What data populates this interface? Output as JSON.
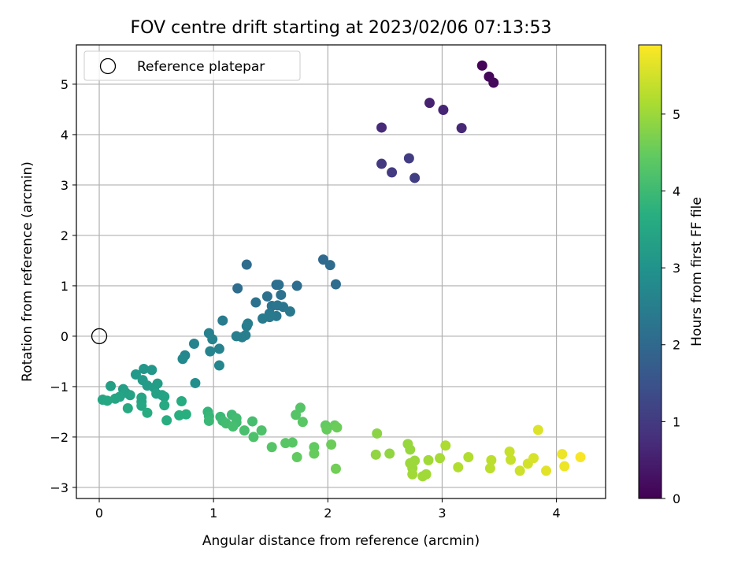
{
  "chart_data": {
    "type": "scatter",
    "title": "FOV centre drift starting at 2023/02/06 07:13:53",
    "xlabel": "Angular distance from reference (arcmin)",
    "ylabel": "Rotation from reference (arcmin)",
    "xlim": [
      -0.2,
      4.43
    ],
    "ylim": [
      -3.22,
      5.78
    ],
    "xticks": [
      0,
      1,
      2,
      3,
      4
    ],
    "yticks": [
      -3,
      -2,
      -1,
      0,
      1,
      2,
      3,
      4,
      5
    ],
    "grid": true,
    "legend": {
      "placement": "upper-left",
      "entries": [
        "Reference platepar"
      ]
    },
    "reference_point": {
      "x": 0,
      "y": 0
    },
    "colorbar": {
      "label": "Hours from first FF file",
      "colormap": "viridis",
      "range": [
        0,
        5.9
      ],
      "ticks": [
        0,
        1,
        2,
        3,
        4,
        5
      ]
    },
    "points": [
      {
        "x": 3.35,
        "y": 5.37,
        "c": 0.05
      },
      {
        "x": 3.41,
        "y": 5.15,
        "c": 0.1
      },
      {
        "x": 3.45,
        "y": 5.03,
        "c": 0.15
      },
      {
        "x": 2.47,
        "y": 4.14,
        "c": 0.7
      },
      {
        "x": 2.89,
        "y": 4.63,
        "c": 0.55
      },
      {
        "x": 3.01,
        "y": 4.49,
        "c": 0.6
      },
      {
        "x": 3.17,
        "y": 4.13,
        "c": 0.65
      },
      {
        "x": 2.47,
        "y": 3.42,
        "c": 0.95
      },
      {
        "x": 2.56,
        "y": 3.25,
        "c": 1.0
      },
      {
        "x": 2.71,
        "y": 3.53,
        "c": 1.05
      },
      {
        "x": 2.76,
        "y": 3.14,
        "c": 1.1
      },
      {
        "x": 1.29,
        "y": 1.42,
        "c": 2.05
      },
      {
        "x": 1.96,
        "y": 1.52,
        "c": 2.0
      },
      {
        "x": 2.02,
        "y": 1.41,
        "c": 2.05
      },
      {
        "x": 2.07,
        "y": 1.03,
        "c": 2.1
      },
      {
        "x": 1.21,
        "y": 0.95,
        "c": 2.1
      },
      {
        "x": 1.55,
        "y": 1.02,
        "c": 2.1
      },
      {
        "x": 1.57,
        "y": 1.02,
        "c": 2.15
      },
      {
        "x": 1.73,
        "y": 1.0,
        "c": 2.1
      },
      {
        "x": 1.37,
        "y": 0.67,
        "c": 2.2
      },
      {
        "x": 1.47,
        "y": 0.79,
        "c": 2.2
      },
      {
        "x": 1.59,
        "y": 0.82,
        "c": 2.2
      },
      {
        "x": 1.51,
        "y": 0.6,
        "c": 2.25
      },
      {
        "x": 1.56,
        "y": 0.61,
        "c": 2.3
      },
      {
        "x": 1.61,
        "y": 0.58,
        "c": 2.3
      },
      {
        "x": 1.49,
        "y": 0.45,
        "c": 2.35
      },
      {
        "x": 1.55,
        "y": 0.4,
        "c": 2.35
      },
      {
        "x": 1.43,
        "y": 0.35,
        "c": 2.4
      },
      {
        "x": 1.49,
        "y": 0.38,
        "c": 2.4
      },
      {
        "x": 1.67,
        "y": 0.49,
        "c": 2.35
      },
      {
        "x": 1.29,
        "y": 0.2,
        "c": 2.45
      },
      {
        "x": 1.3,
        "y": 0.25,
        "c": 2.5
      },
      {
        "x": 1.2,
        "y": 0.0,
        "c": 2.5
      },
      {
        "x": 1.25,
        "y": -0.02,
        "c": 2.5
      },
      {
        "x": 1.28,
        "y": 0.02,
        "c": 2.5
      },
      {
        "x": 1.08,
        "y": 0.31,
        "c": 2.45
      },
      {
        "x": 0.96,
        "y": 0.06,
        "c": 2.55
      },
      {
        "x": 0.99,
        "y": -0.06,
        "c": 2.6
      },
      {
        "x": 0.97,
        "y": -0.3,
        "c": 2.65
      },
      {
        "x": 1.05,
        "y": -0.25,
        "c": 2.6
      },
      {
        "x": 1.05,
        "y": -0.58,
        "c": 2.7
      },
      {
        "x": 0.83,
        "y": -0.15,
        "c": 2.65
      },
      {
        "x": 0.75,
        "y": -0.38,
        "c": 2.7
      },
      {
        "x": 0.73,
        "y": -0.45,
        "c": 2.75
      },
      {
        "x": 0.84,
        "y": -0.93,
        "c": 2.9
      },
      {
        "x": 0.39,
        "y": -0.65,
        "c": 3.1
      },
      {
        "x": 0.46,
        "y": -0.67,
        "c": 3.1
      },
      {
        "x": 0.32,
        "y": -0.76,
        "c": 3.15
      },
      {
        "x": 0.38,
        "y": -0.87,
        "c": 3.2
      },
      {
        "x": 0.42,
        "y": -0.98,
        "c": 3.2
      },
      {
        "x": 0.48,
        "y": -1.02,
        "c": 3.25
      },
      {
        "x": 0.51,
        "y": -0.94,
        "c": 3.25
      },
      {
        "x": 0.1,
        "y": -0.99,
        "c": 3.3
      },
      {
        "x": 0.21,
        "y": -1.05,
        "c": 3.3
      },
      {
        "x": 0.23,
        "y": -1.12,
        "c": 3.35
      },
      {
        "x": 0.27,
        "y": -1.17,
        "c": 3.35
      },
      {
        "x": 0.18,
        "y": -1.2,
        "c": 3.4
      },
      {
        "x": 0.14,
        "y": -1.24,
        "c": 3.45
      },
      {
        "x": 0.03,
        "y": -1.26,
        "c": 3.45
      },
      {
        "x": 0.07,
        "y": -1.28,
        "c": 3.5
      },
      {
        "x": 0.5,
        "y": -1.14,
        "c": 3.35
      },
      {
        "x": 0.55,
        "y": -1.17,
        "c": 3.35
      },
      {
        "x": 0.57,
        "y": -1.2,
        "c": 3.4
      },
      {
        "x": 0.37,
        "y": -1.22,
        "c": 3.45
      },
      {
        "x": 0.37,
        "y": -1.3,
        "c": 3.45
      },
      {
        "x": 0.37,
        "y": -1.38,
        "c": 3.5
      },
      {
        "x": 0.25,
        "y": -1.43,
        "c": 3.55
      },
      {
        "x": 0.57,
        "y": -1.37,
        "c": 3.55
      },
      {
        "x": 0.42,
        "y": -1.52,
        "c": 3.6
      },
      {
        "x": 0.59,
        "y": -1.67,
        "c": 3.65
      },
      {
        "x": 0.72,
        "y": -1.29,
        "c": 3.6
      },
      {
        "x": 0.7,
        "y": -1.57,
        "c": 3.7
      },
      {
        "x": 0.76,
        "y": -1.55,
        "c": 3.7
      },
      {
        "x": 0.95,
        "y": -1.5,
        "c": 3.85
      },
      {
        "x": 0.96,
        "y": -1.59,
        "c": 3.9
      },
      {
        "x": 0.96,
        "y": -1.68,
        "c": 3.95
      },
      {
        "x": 1.06,
        "y": -1.6,
        "c": 3.95
      },
      {
        "x": 1.08,
        "y": -1.68,
        "c": 4.0
      },
      {
        "x": 1.11,
        "y": -1.73,
        "c": 4.05
      },
      {
        "x": 1.16,
        "y": -1.56,
        "c": 4.0
      },
      {
        "x": 1.2,
        "y": -1.63,
        "c": 4.05
      },
      {
        "x": 1.2,
        "y": -1.71,
        "c": 4.05
      },
      {
        "x": 1.17,
        "y": -1.79,
        "c": 4.1
      },
      {
        "x": 1.27,
        "y": -1.87,
        "c": 4.15
      },
      {
        "x": 1.34,
        "y": -1.69,
        "c": 4.1
      },
      {
        "x": 1.35,
        "y": -2.0,
        "c": 4.2
      },
      {
        "x": 1.42,
        "y": -1.87,
        "c": 4.2
      },
      {
        "x": 1.51,
        "y": -2.2,
        "c": 4.3
      },
      {
        "x": 1.63,
        "y": -2.12,
        "c": 4.35
      },
      {
        "x": 1.69,
        "y": -2.11,
        "c": 4.35
      },
      {
        "x": 1.72,
        "y": -1.56,
        "c": 4.3
      },
      {
        "x": 1.76,
        "y": -1.42,
        "c": 4.3
      },
      {
        "x": 1.78,
        "y": -1.7,
        "c": 4.35
      },
      {
        "x": 1.73,
        "y": -2.4,
        "c": 4.45
      },
      {
        "x": 1.88,
        "y": -2.2,
        "c": 4.45
      },
      {
        "x": 1.88,
        "y": -2.33,
        "c": 4.5
      },
      {
        "x": 1.98,
        "y": -1.77,
        "c": 4.45
      },
      {
        "x": 1.99,
        "y": -1.85,
        "c": 4.5
      },
      {
        "x": 2.06,
        "y": -1.77,
        "c": 4.5
      },
      {
        "x": 2.08,
        "y": -1.81,
        "c": 4.55
      },
      {
        "x": 2.03,
        "y": -2.15,
        "c": 4.55
      },
      {
        "x": 2.07,
        "y": -2.63,
        "c": 4.6
      },
      {
        "x": 2.43,
        "y": -1.93,
        "c": 4.85
      },
      {
        "x": 2.42,
        "y": -2.35,
        "c": 4.9
      },
      {
        "x": 2.54,
        "y": -2.33,
        "c": 4.9
      },
      {
        "x": 2.7,
        "y": -2.14,
        "c": 4.95
      },
      {
        "x": 2.72,
        "y": -2.25,
        "c": 4.95
      },
      {
        "x": 2.72,
        "y": -2.52,
        "c": 5.0
      },
      {
        "x": 2.76,
        "y": -2.47,
        "c": 5.0
      },
      {
        "x": 2.74,
        "y": -2.62,
        "c": 5.0
      },
      {
        "x": 2.74,
        "y": -2.74,
        "c": 5.05
      },
      {
        "x": 2.83,
        "y": -2.78,
        "c": 5.05
      },
      {
        "x": 2.86,
        "y": -2.74,
        "c": 5.05
      },
      {
        "x": 2.88,
        "y": -2.46,
        "c": 5.05
      },
      {
        "x": 2.98,
        "y": -2.42,
        "c": 5.1
      },
      {
        "x": 3.03,
        "y": -2.17,
        "c": 5.15
      },
      {
        "x": 3.14,
        "y": -2.6,
        "c": 5.2
      },
      {
        "x": 3.23,
        "y": -2.4,
        "c": 5.2
      },
      {
        "x": 3.42,
        "y": -2.62,
        "c": 5.3
      },
      {
        "x": 3.43,
        "y": -2.46,
        "c": 5.3
      },
      {
        "x": 3.59,
        "y": -2.29,
        "c": 5.4
      },
      {
        "x": 3.6,
        "y": -2.45,
        "c": 5.4
      },
      {
        "x": 3.68,
        "y": -2.67,
        "c": 5.45
      },
      {
        "x": 3.75,
        "y": -2.53,
        "c": 5.5
      },
      {
        "x": 3.8,
        "y": -2.42,
        "c": 5.55
      },
      {
        "x": 3.84,
        "y": -1.86,
        "c": 5.6
      },
      {
        "x": 3.91,
        "y": -2.67,
        "c": 5.65
      },
      {
        "x": 4.05,
        "y": -2.34,
        "c": 5.75
      },
      {
        "x": 4.07,
        "y": -2.58,
        "c": 5.75
      },
      {
        "x": 4.21,
        "y": -2.4,
        "c": 5.85
      }
    ]
  }
}
